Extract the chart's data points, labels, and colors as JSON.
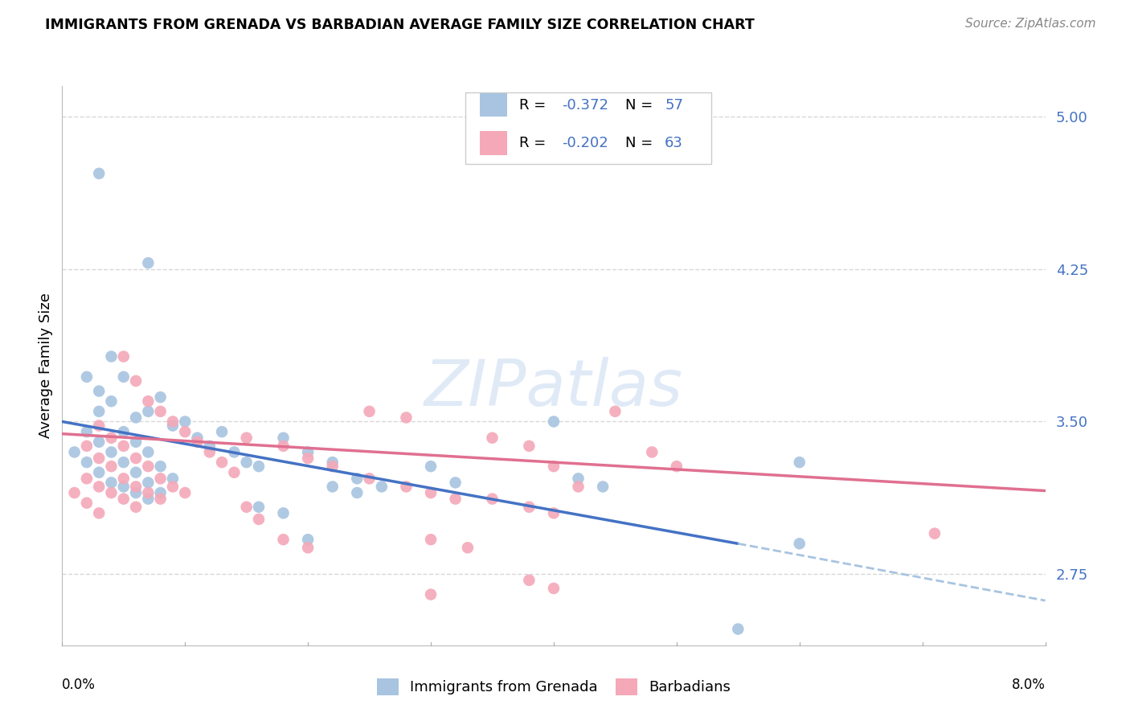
{
  "title": "IMMIGRANTS FROM GRENADA VS BARBADIAN AVERAGE FAMILY SIZE CORRELATION CHART",
  "source": "Source: ZipAtlas.com",
  "ylabel": "Average Family Size",
  "yticks": [
    2.75,
    3.5,
    4.25,
    5.0
  ],
  "xlim": [
    0.0,
    0.08
  ],
  "ylim": [
    2.4,
    5.15
  ],
  "background_color": "#ffffff",
  "grid_color": "#d8d8d8",
  "color_blue": "#a8c4e0",
  "color_pink": "#f4a8b8",
  "line_blue": "#4472c4",
  "line_pink": "#e07090",
  "series1_label": "Immigrants from Grenada",
  "series2_label": "Barbadians",
  "blue_points": [
    [
      0.003,
      4.72
    ],
    [
      0.007,
      4.28
    ],
    [
      0.002,
      3.72
    ],
    [
      0.003,
      3.65
    ],
    [
      0.004,
      3.82
    ],
    [
      0.005,
      3.72
    ],
    [
      0.006,
      3.52
    ],
    [
      0.007,
      3.55
    ],
    [
      0.008,
      3.62
    ],
    [
      0.009,
      3.48
    ],
    [
      0.01,
      3.5
    ],
    [
      0.011,
      3.42
    ],
    [
      0.012,
      3.38
    ],
    [
      0.013,
      3.45
    ],
    [
      0.014,
      3.35
    ],
    [
      0.015,
      3.3
    ],
    [
      0.016,
      3.28
    ],
    [
      0.003,
      3.55
    ],
    [
      0.004,
      3.6
    ],
    [
      0.005,
      3.45
    ],
    [
      0.006,
      3.4
    ],
    [
      0.007,
      3.35
    ],
    [
      0.008,
      3.28
    ],
    [
      0.009,
      3.22
    ],
    [
      0.002,
      3.45
    ],
    [
      0.003,
      3.4
    ],
    [
      0.004,
      3.35
    ],
    [
      0.005,
      3.3
    ],
    [
      0.006,
      3.25
    ],
    [
      0.007,
      3.2
    ],
    [
      0.008,
      3.15
    ],
    [
      0.001,
      3.35
    ],
    [
      0.002,
      3.3
    ],
    [
      0.003,
      3.25
    ],
    [
      0.004,
      3.2
    ],
    [
      0.005,
      3.18
    ],
    [
      0.006,
      3.15
    ],
    [
      0.007,
      3.12
    ],
    [
      0.018,
      3.42
    ],
    [
      0.02,
      3.35
    ],
    [
      0.022,
      3.3
    ],
    [
      0.024,
      3.22
    ],
    [
      0.026,
      3.18
    ],
    [
      0.03,
      3.28
    ],
    [
      0.032,
      3.2
    ],
    [
      0.04,
      3.5
    ],
    [
      0.042,
      3.22
    ],
    [
      0.044,
      3.18
    ],
    [
      0.022,
      3.18
    ],
    [
      0.024,
      3.15
    ],
    [
      0.016,
      3.08
    ],
    [
      0.018,
      3.05
    ],
    [
      0.02,
      2.92
    ],
    [
      0.06,
      3.3
    ],
    [
      0.055,
      2.48
    ],
    [
      0.06,
      2.9
    ]
  ],
  "pink_points": [
    [
      0.005,
      3.82
    ],
    [
      0.006,
      3.7
    ],
    [
      0.007,
      3.6
    ],
    [
      0.008,
      3.55
    ],
    [
      0.009,
      3.5
    ],
    [
      0.01,
      3.45
    ],
    [
      0.011,
      3.4
    ],
    [
      0.012,
      3.35
    ],
    [
      0.013,
      3.3
    ],
    [
      0.014,
      3.25
    ],
    [
      0.003,
      3.48
    ],
    [
      0.004,
      3.42
    ],
    [
      0.005,
      3.38
    ],
    [
      0.006,
      3.32
    ],
    [
      0.007,
      3.28
    ],
    [
      0.008,
      3.22
    ],
    [
      0.009,
      3.18
    ],
    [
      0.01,
      3.15
    ],
    [
      0.002,
      3.38
    ],
    [
      0.003,
      3.32
    ],
    [
      0.004,
      3.28
    ],
    [
      0.005,
      3.22
    ],
    [
      0.006,
      3.18
    ],
    [
      0.007,
      3.15
    ],
    [
      0.008,
      3.12
    ],
    [
      0.002,
      3.22
    ],
    [
      0.003,
      3.18
    ],
    [
      0.004,
      3.15
    ],
    [
      0.005,
      3.12
    ],
    [
      0.006,
      3.08
    ],
    [
      0.001,
      3.15
    ],
    [
      0.002,
      3.1
    ],
    [
      0.003,
      3.05
    ],
    [
      0.015,
      3.42
    ],
    [
      0.018,
      3.38
    ],
    [
      0.02,
      3.32
    ],
    [
      0.022,
      3.28
    ],
    [
      0.025,
      3.22
    ],
    [
      0.028,
      3.18
    ],
    [
      0.03,
      3.15
    ],
    [
      0.032,
      3.12
    ],
    [
      0.025,
      3.55
    ],
    [
      0.028,
      3.52
    ],
    [
      0.035,
      3.42
    ],
    [
      0.038,
      3.38
    ],
    [
      0.045,
      3.55
    ],
    [
      0.048,
      3.35
    ],
    [
      0.05,
      3.28
    ],
    [
      0.035,
      3.12
    ],
    [
      0.038,
      3.08
    ],
    [
      0.04,
      3.05
    ],
    [
      0.015,
      3.08
    ],
    [
      0.016,
      3.02
    ],
    [
      0.018,
      2.92
    ],
    [
      0.02,
      2.88
    ],
    [
      0.03,
      2.92
    ],
    [
      0.033,
      2.88
    ],
    [
      0.04,
      3.28
    ],
    [
      0.042,
      3.18
    ],
    [
      0.071,
      2.95
    ],
    [
      0.038,
      2.72
    ],
    [
      0.04,
      2.68
    ],
    [
      0.03,
      2.65
    ]
  ],
  "trend_blue_x0": 0.0,
  "trend_blue_x1": 0.055,
  "trend_blue_y0": 3.5,
  "trend_blue_y1": 2.9,
  "trend_blue_dash_x0": 0.055,
  "trend_blue_dash_x1": 0.08,
  "trend_blue_dash_y0": 2.9,
  "trend_blue_dash_y1": 2.62,
  "trend_pink_x0": 0.0,
  "trend_pink_x1": 0.08,
  "trend_pink_y0": 3.44,
  "trend_pink_y1": 3.16
}
